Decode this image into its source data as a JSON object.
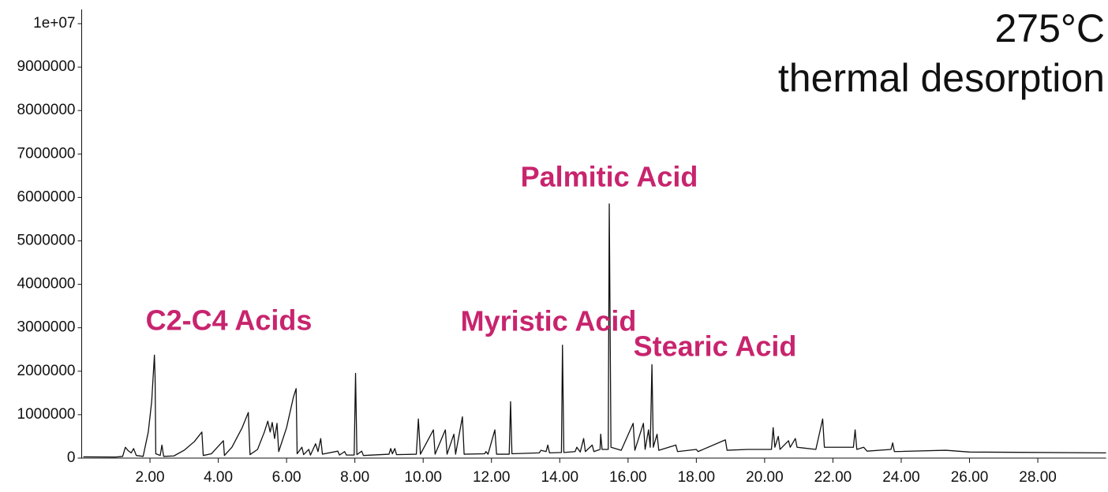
{
  "chart_data": {
    "type": "line",
    "title": "275°C",
    "subtitle": "thermal desorption",
    "annotations": [
      "C2-C4 Acids",
      "Palmitic Acid",
      "Myristic Acid",
      "Stearic Acid"
    ],
    "annotation_color": "#c8246e",
    "color": "#111111",
    "xlim": [
      0,
      30
    ],
    "xticks": [
      {
        "value": 2,
        "label": "2.00"
      },
      {
        "value": 4,
        "label": "4.00"
      },
      {
        "value": 6,
        "label": "6.00"
      },
      {
        "value": 8,
        "label": "8.00"
      },
      {
        "value": 10,
        "label": "10.00"
      },
      {
        "value": 12,
        "label": "12.00"
      },
      {
        "value": 14,
        "label": "14.00"
      },
      {
        "value": 16,
        "label": "16.00"
      },
      {
        "value": 18,
        "label": "18.00"
      },
      {
        "value": 20,
        "label": "20.00"
      },
      {
        "value": 22,
        "label": "22.00"
      },
      {
        "value": 24,
        "label": "24.00"
      },
      {
        "value": 26,
        "label": "26.00"
      },
      {
        "value": 28,
        "label": "28.00"
      }
    ],
    "ylim": [
      0,
      10000000
    ],
    "yticks": [
      0,
      1000000,
      2000000,
      3000000,
      4000000,
      5000000,
      6000000,
      7000000,
      8000000,
      9000000,
      {
        "value": 10000000,
        "label": "1e+07"
      }
    ],
    "x": [
      0.05,
      1.0,
      1.2,
      1.28,
      1.35,
      1.45,
      1.52,
      1.6,
      1.8,
      1.95,
      2.05,
      2.13,
      2.15,
      2.17,
      2.3,
      2.35,
      2.4,
      2.7,
      3.0,
      3.3,
      3.52,
      3.56,
      3.8,
      4.15,
      4.18,
      4.4,
      4.7,
      4.88,
      4.93,
      5.15,
      5.35,
      5.45,
      5.52,
      5.58,
      5.65,
      5.72,
      5.77,
      6.0,
      6.2,
      6.28,
      6.31,
      6.45,
      6.5,
      6.65,
      6.7,
      6.85,
      6.92,
      7.0,
      7.05,
      7.5,
      7.55,
      7.7,
      7.75,
      7.98,
      8.02,
      8.06,
      8.2,
      8.25,
      9.0,
      9.05,
      9.1,
      9.17,
      9.22,
      9.8,
      9.86,
      9.92,
      10.3,
      10.35,
      10.65,
      10.7,
      10.9,
      10.95,
      11.15,
      11.2,
      11.8,
      11.84,
      11.9,
      12.1,
      12.15,
      12.52,
      12.56,
      12.6,
      13.4,
      13.45,
      13.6,
      13.65,
      13.7,
      14.05,
      14.08,
      14.12,
      14.45,
      14.5,
      14.6,
      14.7,
      14.75,
      14.95,
      15.0,
      15.18,
      15.2,
      15.24,
      15.42,
      15.45,
      15.5,
      15.8,
      16.15,
      16.2,
      16.45,
      16.5,
      16.6,
      16.65,
      16.7,
      16.74,
      16.85,
      16.9,
      17.4,
      17.45,
      18.0,
      18.05,
      18.85,
      18.9,
      19.5,
      20.2,
      20.25,
      20.3,
      20.4,
      20.45,
      20.7,
      20.75,
      20.9,
      20.95,
      21.5,
      21.7,
      21.75,
      22.6,
      22.65,
      22.7,
      22.9,
      23.0,
      23.7,
      23.75,
      23.8,
      25.3,
      26.0,
      30.0
    ],
    "values": [
      30000,
      25000,
      40000,
      250000,
      180000,
      120000,
      220000,
      60000,
      40000,
      600000,
      1300000,
      2370000,
      1850000,
      100000,
      60000,
      300000,
      40000,
      50000,
      180000,
      380000,
      600000,
      60000,
      100000,
      400000,
      60000,
      250000,
      700000,
      1050000,
      80000,
      200000,
      600000,
      850000,
      600000,
      820000,
      450000,
      800000,
      150000,
      700000,
      1400000,
      1600000,
      100000,
      250000,
      80000,
      200000,
      70000,
      330000,
      150000,
      450000,
      90000,
      160000,
      70000,
      150000,
      70000,
      70000,
      1950000,
      80000,
      160000,
      60000,
      90000,
      220000,
      100000,
      220000,
      80000,
      90000,
      900000,
      90000,
      650000,
      90000,
      650000,
      90000,
      550000,
      90000,
      950000,
      90000,
      100000,
      150000,
      90000,
      650000,
      90000,
      90000,
      1300000,
      100000,
      120000,
      180000,
      150000,
      300000,
      120000,
      130000,
      2600000,
      130000,
      150000,
      250000,
      140000,
      450000,
      150000,
      300000,
      150000,
      200000,
      550000,
      200000,
      200000,
      5850000,
      250000,
      180000,
      800000,
      180000,
      800000,
      200000,
      650000,
      250000,
      2150000,
      250000,
      550000,
      180000,
      300000,
      150000,
      200000,
      150000,
      420000,
      180000,
      200000,
      200000,
      700000,
      250000,
      500000,
      200000,
      400000,
      250000,
      450000,
      250000,
      200000,
      900000,
      250000,
      250000,
      650000,
      200000,
      250000,
      160000,
      200000,
      350000,
      150000,
      180000,
      140000,
      120000
    ]
  }
}
